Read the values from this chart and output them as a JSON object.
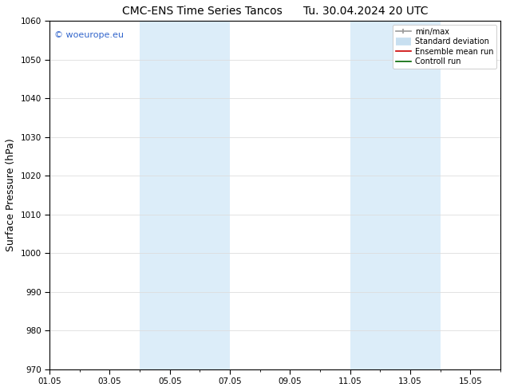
{
  "title_left": "CMC-ENS Time Series Tancos",
  "title_right": "Tu. 30.04.2024 20 UTC",
  "ylabel": "Surface Pressure (hPa)",
  "ylim": [
    970,
    1060
  ],
  "yticks": [
    970,
    980,
    990,
    1000,
    1010,
    1020,
    1030,
    1040,
    1050,
    1060
  ],
  "xlim_start": 0.0,
  "xlim_end": 15.0,
  "xtick_labels": [
    "01.05",
    "03.05",
    "05.05",
    "07.05",
    "09.05",
    "11.05",
    "13.05",
    "15.05"
  ],
  "xtick_positions": [
    0,
    2,
    4,
    6,
    8,
    10,
    12,
    14
  ],
  "shaded_bands": [
    {
      "x_start": 3.0,
      "x_end": 5.0
    },
    {
      "x_start": 5.0,
      "x_end": 6.0
    },
    {
      "x_start": 10.0,
      "x_end": 12.0
    },
    {
      "x_start": 12.0,
      "x_end": 13.0
    }
  ],
  "shaded_bands_v2": [
    {
      "x_start": 3.0,
      "x_end": 6.0
    },
    {
      "x_start": 10.0,
      "x_end": 13.0
    }
  ],
  "band_color": "#dcedf9",
  "watermark_text": "© woeurope.eu",
  "watermark_color": "#3366cc",
  "legend_entries": [
    {
      "label": "min/max",
      "color": "#999999"
    },
    {
      "label": "Standard deviation",
      "color": "#c8dff0"
    },
    {
      "label": "Ensemble mean run",
      "color": "#cc0000"
    },
    {
      "label": "Controll run",
      "color": "#006600"
    }
  ],
  "bg_color": "#ffffff",
  "grid_color": "#dddddd",
  "spine_color": "#000000",
  "title_fontsize": 10,
  "tick_fontsize": 7.5,
  "label_fontsize": 9,
  "legend_fontsize": 7
}
